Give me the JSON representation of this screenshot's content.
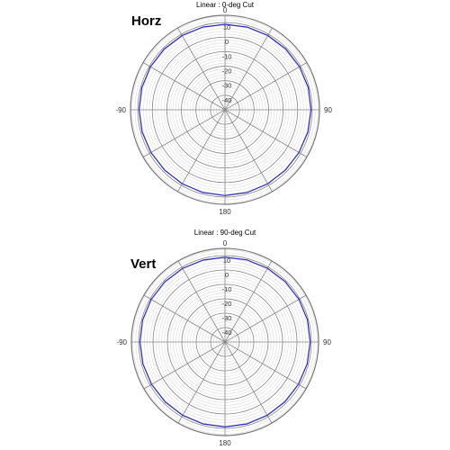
{
  "chart_data": [
    {
      "type": "polar-line",
      "title": "Linear : 0-deg Cut",
      "side_label": "Horz",
      "angle_labels": [
        {
          "angle": 0,
          "text": "0"
        },
        {
          "angle": 90,
          "text": "90"
        },
        {
          "angle": 180,
          "text": "180"
        },
        {
          "angle": -90,
          "text": "-90"
        }
      ],
      "radial_tick_labels": [
        "10",
        "0",
        "-10",
        "-20",
        "-30",
        "-40"
      ],
      "radial_range": [
        -50,
        15
      ],
      "radial_ticks": [
        10,
        0,
        -10,
        -20,
        -30,
        -40
      ],
      "angle_spokes_every_deg": 30,
      "series": [
        {
          "color": "#2b2bb8",
          "angles": [
            0,
            15,
            30,
            45,
            60,
            75,
            90,
            105,
            120,
            135,
            150,
            165,
            180,
            195,
            210,
            225,
            240,
            255,
            270,
            285,
            300,
            315,
            330,
            345
          ],
          "values": [
            8.8,
            8.9,
            9.0,
            9.1,
            9.2,
            9.3,
            9.2,
            9.0,
            8.8,
            8.7,
            8.8,
            8.9,
            9.0,
            8.9,
            8.8,
            8.7,
            8.8,
            9.0,
            9.1,
            9.2,
            9.2,
            9.1,
            9.0,
            8.9
          ]
        }
      ]
    },
    {
      "type": "polar-line",
      "title": "Linear : 90-deg Cut",
      "side_label": "Vert",
      "angle_labels": [
        {
          "angle": 0,
          "text": "0"
        },
        {
          "angle": 90,
          "text": "90"
        },
        {
          "angle": 180,
          "text": "180"
        },
        {
          "angle": -90,
          "text": "-90"
        }
      ],
      "radial_tick_labels": [
        "10",
        "0",
        "-10",
        "-20",
        "-30",
        "-40"
      ],
      "radial_range": [
        -50,
        15
      ],
      "radial_ticks": [
        10,
        0,
        -10,
        -20,
        -30,
        -40
      ],
      "angle_spokes_every_deg": 30,
      "series": [
        {
          "color": "#2b2bb8",
          "angles": [
            0,
            15,
            30,
            45,
            60,
            75,
            90,
            105,
            120,
            135,
            150,
            165,
            180,
            195,
            210,
            225,
            240,
            255,
            270,
            285,
            300,
            315,
            330,
            345
          ],
          "values": [
            8.9,
            9.0,
            9.1,
            9.2,
            9.3,
            9.3,
            9.2,
            9.1,
            8.9,
            8.8,
            8.8,
            8.9,
            9.0,
            8.9,
            8.8,
            8.8,
            8.9,
            9.0,
            9.1,
            9.2,
            9.2,
            9.1,
            9.0,
            8.9
          ]
        }
      ]
    }
  ]
}
